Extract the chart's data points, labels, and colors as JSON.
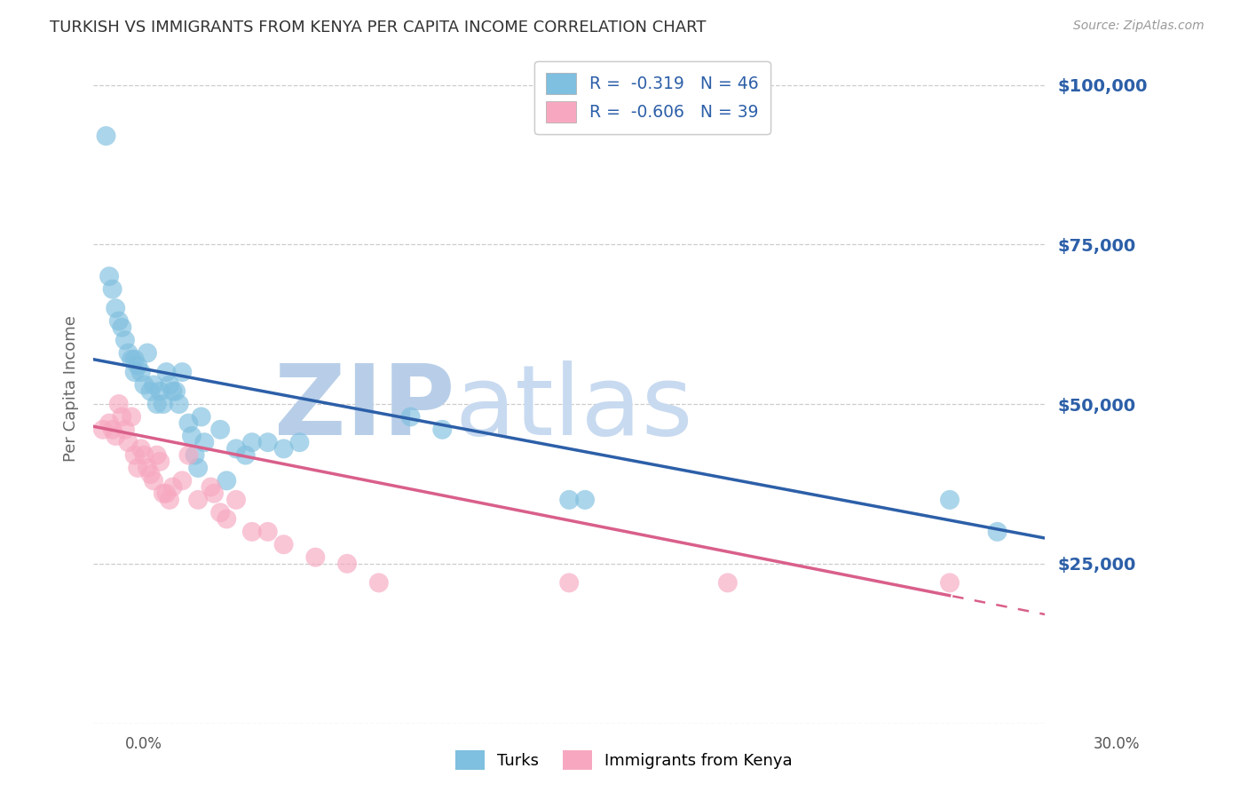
{
  "title": "TURKISH VS IMMIGRANTS FROM KENYA PER CAPITA INCOME CORRELATION CHART",
  "source": "Source: ZipAtlas.com",
  "ylabel": "Per Capita Income",
  "yticks": [
    0,
    25000,
    50000,
    75000,
    100000
  ],
  "ytick_labels": [
    "",
    "$25,000",
    "$50,000",
    "$75,000",
    "$100,000"
  ],
  "ylim": [
    0,
    105000
  ],
  "xlim": [
    0,
    0.3
  ],
  "legend": {
    "blue_r": "R =  -0.319",
    "blue_n": "N = 46",
    "pink_r": "R =  -0.606",
    "pink_n": "N = 39"
  },
  "turks_x": [
    0.004,
    0.005,
    0.006,
    0.007,
    0.008,
    0.009,
    0.01,
    0.011,
    0.012,
    0.013,
    0.013,
    0.014,
    0.015,
    0.016,
    0.017,
    0.018,
    0.019,
    0.02,
    0.021,
    0.022,
    0.023,
    0.024,
    0.025,
    0.026,
    0.027,
    0.028,
    0.03,
    0.031,
    0.032,
    0.033,
    0.034,
    0.035,
    0.04,
    0.042,
    0.045,
    0.048,
    0.05,
    0.055,
    0.06,
    0.065,
    0.1,
    0.11,
    0.15,
    0.155,
    0.27,
    0.285
  ],
  "turks_y": [
    92000,
    70000,
    68000,
    65000,
    63000,
    62000,
    60000,
    58000,
    57000,
    57000,
    55000,
    56000,
    55000,
    53000,
    58000,
    52000,
    53000,
    50000,
    52000,
    50000,
    55000,
    53000,
    52000,
    52000,
    50000,
    55000,
    47000,
    45000,
    42000,
    40000,
    48000,
    44000,
    46000,
    38000,
    43000,
    42000,
    44000,
    44000,
    43000,
    44000,
    48000,
    46000,
    35000,
    35000,
    35000,
    30000
  ],
  "kenya_x": [
    0.003,
    0.005,
    0.006,
    0.007,
    0.008,
    0.009,
    0.01,
    0.011,
    0.012,
    0.013,
    0.014,
    0.015,
    0.016,
    0.017,
    0.018,
    0.019,
    0.02,
    0.021,
    0.022,
    0.023,
    0.024,
    0.025,
    0.028,
    0.03,
    0.033,
    0.037,
    0.038,
    0.04,
    0.042,
    0.045,
    0.05,
    0.055,
    0.06,
    0.07,
    0.08,
    0.09,
    0.15,
    0.2,
    0.27
  ],
  "kenya_y": [
    46000,
    47000,
    46000,
    45000,
    50000,
    48000,
    46000,
    44000,
    48000,
    42000,
    40000,
    43000,
    42000,
    40000,
    39000,
    38000,
    42000,
    41000,
    36000,
    36000,
    35000,
    37000,
    38000,
    42000,
    35000,
    37000,
    36000,
    33000,
    32000,
    35000,
    30000,
    30000,
    28000,
    26000,
    25000,
    22000,
    22000,
    22000,
    22000
  ],
  "blue_color": "#7fbfdf",
  "pink_color": "#f7a8c0",
  "blue_line_color": "#2c5fa8",
  "pink_line_color": "#d95f8a",
  "background_color": "#ffffff",
  "grid_color": "#cccccc",
  "title_color": "#333333",
  "watermark_zip": "ZIP",
  "watermark_atlas": "atlas",
  "watermark_color": "#c8d8ef"
}
